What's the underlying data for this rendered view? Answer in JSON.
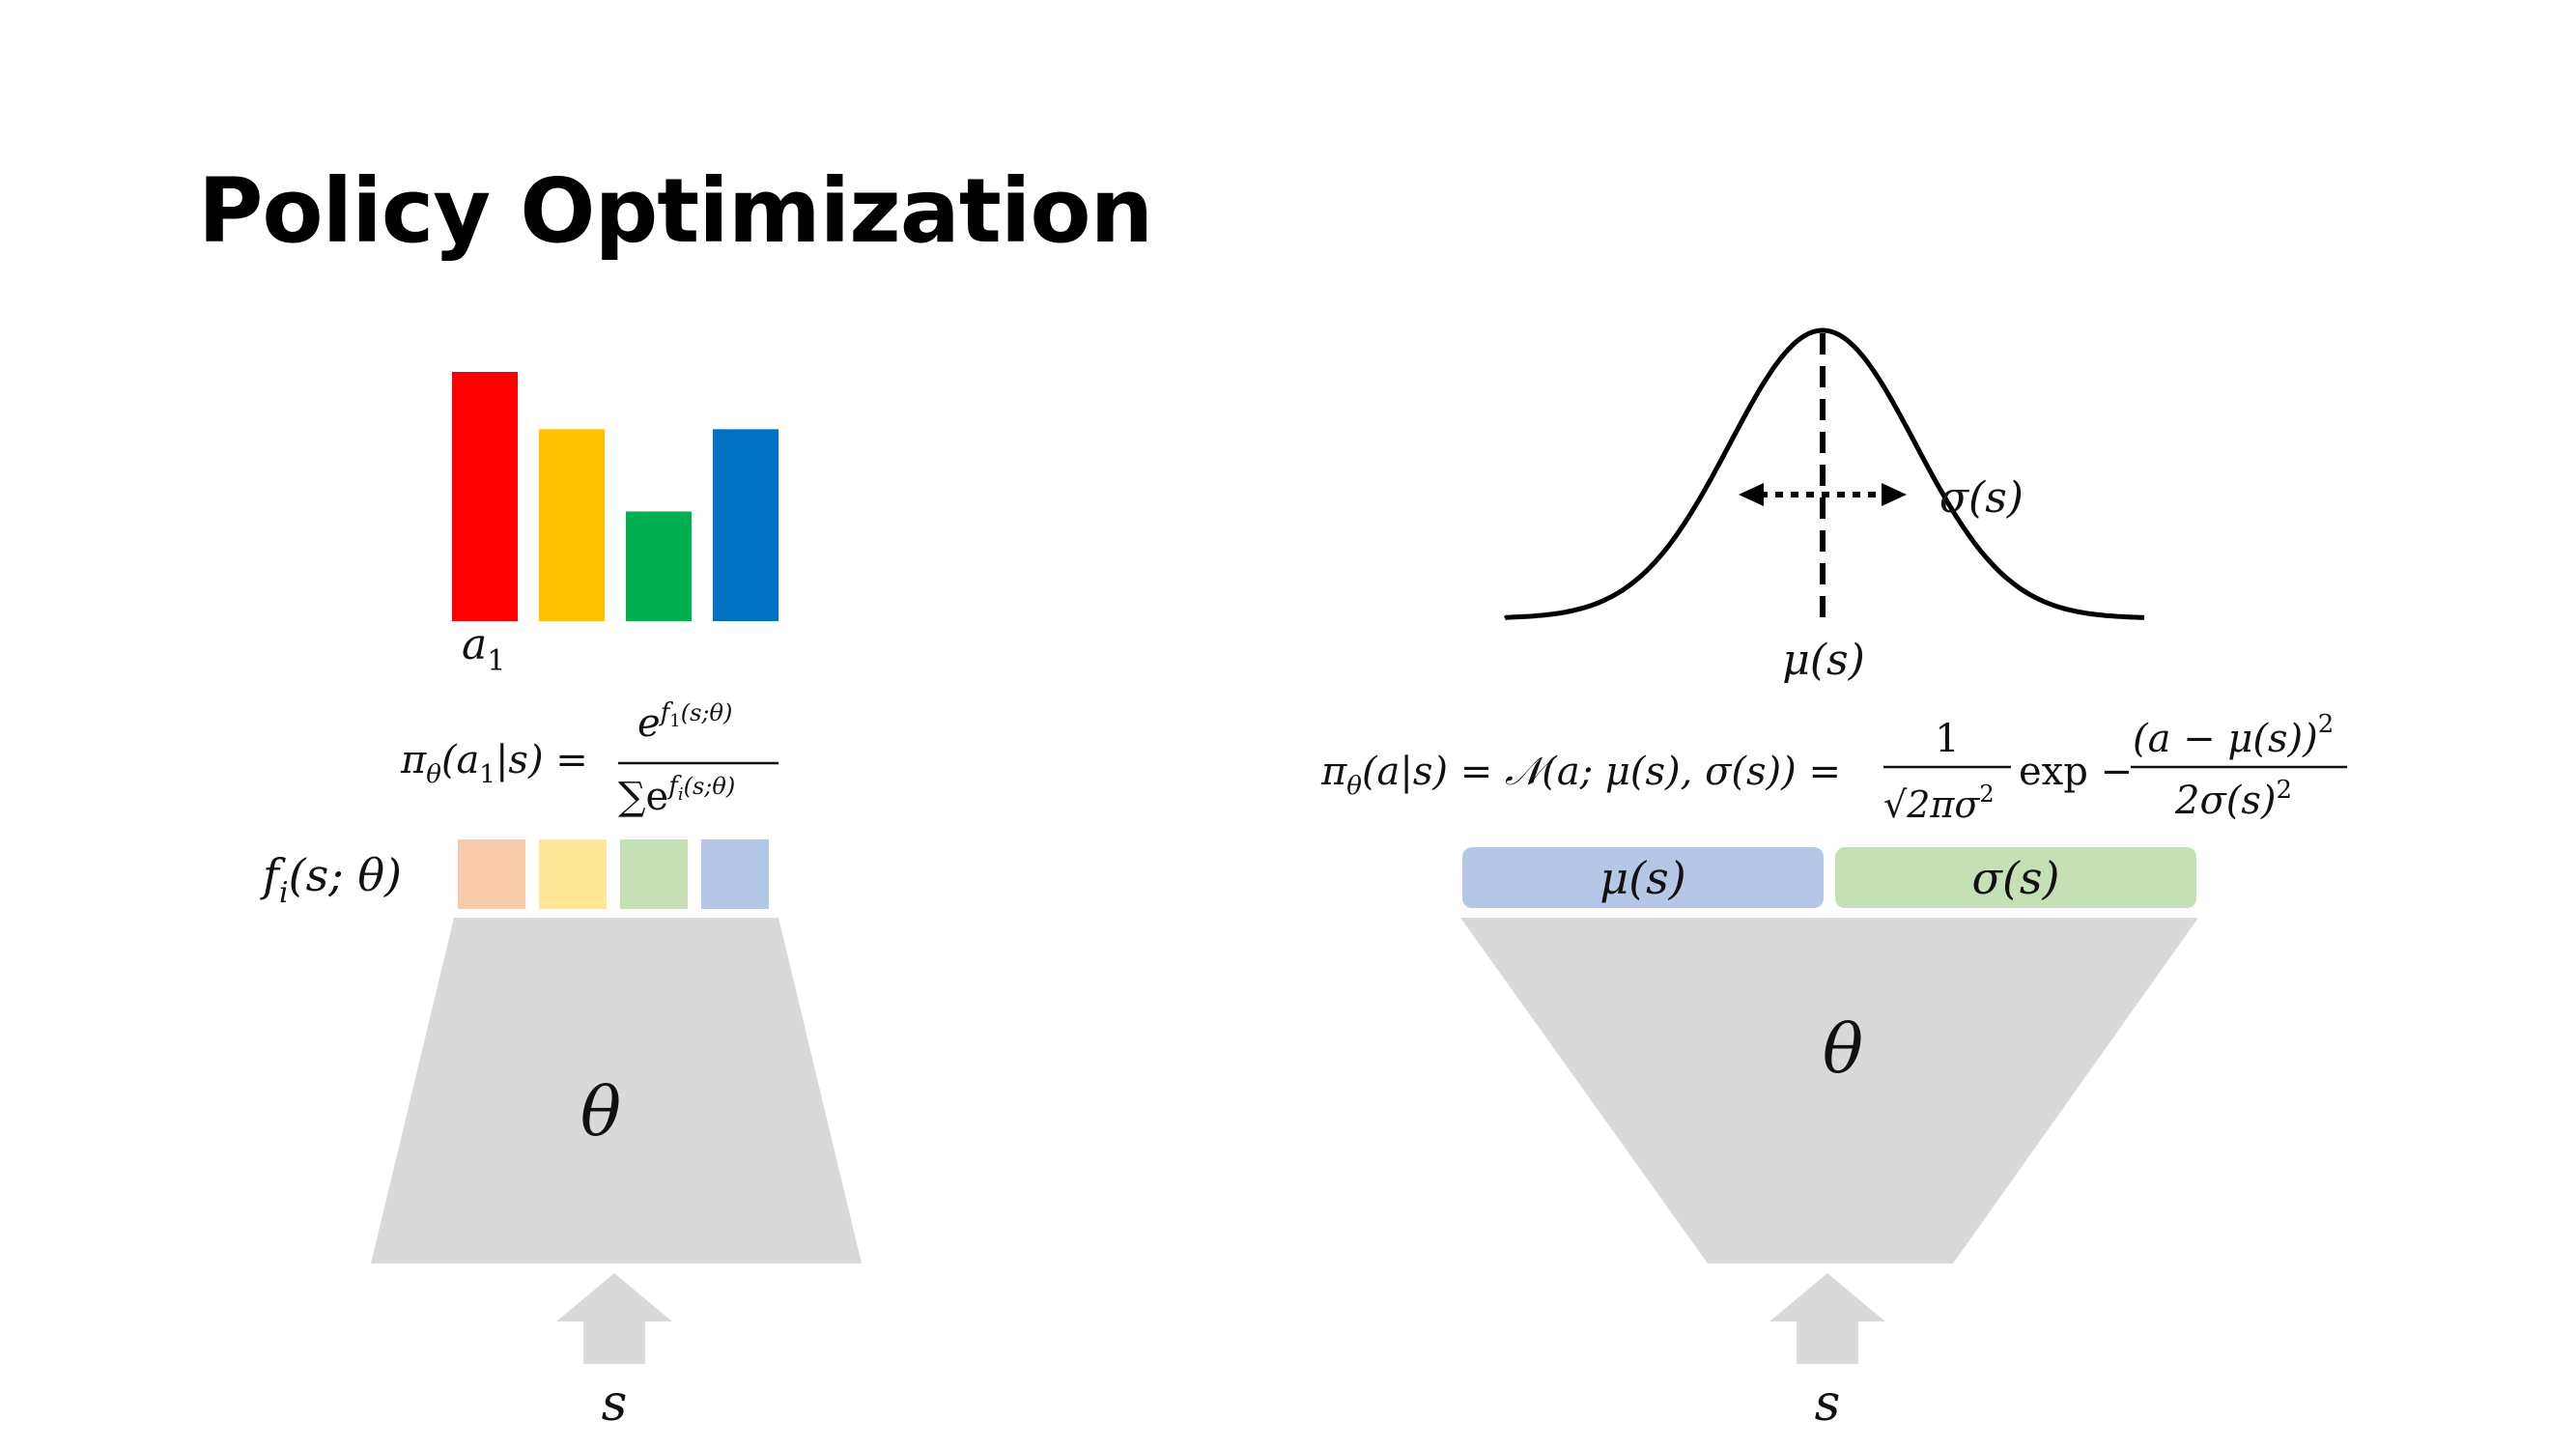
{
  "slide": {
    "title": "Policy Optimization"
  },
  "discrete": {
    "bars": [
      {
        "color": "#ff0000",
        "level": 1.0
      },
      {
        "color": "#ffc000",
        "level": 0.77
      },
      {
        "color": "#00b050",
        "level": 0.44
      },
      {
        "color": "#0070c0",
        "level": 0.77
      }
    ],
    "logit_colors": [
      "#f8cbad",
      "#ffe699",
      "#c5e0b4",
      "#b4c7e7"
    ],
    "bar_label_base": "a",
    "bar_label_sub": "1",
    "policy_lhs": "π",
    "policy_lhs_sub": "θ",
    "policy_lhs_args": "(a",
    "policy_lhs_args_sub": "1",
    "policy_lhs_args_rest": "|s) =",
    "numerator_base": "e",
    "numerator_exp": "f",
    "numerator_exp_sub": "1",
    "numerator_exp_args": "(s;θ)",
    "denominator_sum": "∑e",
    "denominator_exp": "f",
    "denominator_exp_sub": "i",
    "denominator_exp_args": "(s;θ)",
    "logit_label": "f",
    "logit_label_sub": "i",
    "logit_label_args": "(s; θ)",
    "network_label": "θ",
    "input_label": "s"
  },
  "continuous": {
    "sigma_label": "σ(s)",
    "mu_label": "μ(s)",
    "formula_lhs": "π",
    "formula_lhs_sub": "θ",
    "formula_part1": "(a|s) = 𝒩(a; μ(s), σ(s)) =",
    "frac1_num": "1",
    "frac1_den": "√2πσ",
    "frac1_den_sup": "2",
    "exp_text": "exp −",
    "frac2_num": "(a − μ(s))",
    "frac2_num_sup": "2",
    "frac2_den": "2σ(s)",
    "frac2_den_sup": "2",
    "mu_box_label": "μ(s)",
    "sigma_box_label": "σ(s)",
    "mu_box_color": "#b4c7e7",
    "sigma_box_color": "#c5e0b4",
    "network_label": "θ",
    "input_label": "s"
  },
  "colors": {
    "network": "#d9d9d9"
  }
}
